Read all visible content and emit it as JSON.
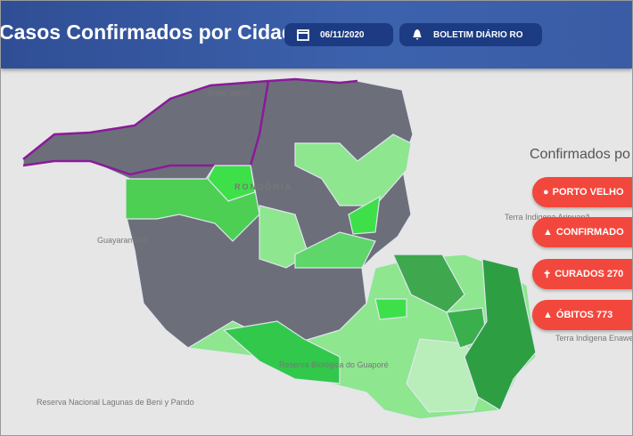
{
  "header": {
    "title": "Casos Confirmados por Cidade",
    "date": "06/11/2020",
    "bulletin": "BOLETIM DIÁRIO RO"
  },
  "panel": {
    "title": "Confirmados po",
    "buttons": [
      "PORTO VELHO",
      "CONFIRMADO",
      "CURADOS 270",
      "ÓBITOS 773"
    ]
  },
  "map": {
    "labels": [
      "Porto Velho",
      "RONDÔNIA",
      "Guayaramerín",
      "Terra Indigena Aripuanã",
      "Terra Indigena Enawenê-Nawê",
      "Reserva Nacional Lagunas de Beni y Pando",
      "Reserva Biológica do Guaporé"
    ]
  }
}
